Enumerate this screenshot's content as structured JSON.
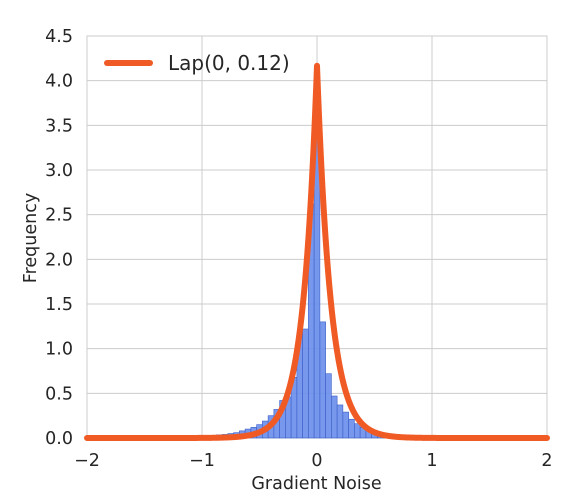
{
  "chart_data": {
    "type": "histogram",
    "title": "",
    "xlabel": "Gradient Noise",
    "ylabel": "Frequency",
    "xlim": [
      -2,
      2
    ],
    "ylim": [
      0,
      4.5
    ],
    "xticks": [
      "−2",
      "−1",
      "0",
      "1",
      "2"
    ],
    "yticks": [
      "0.0",
      "0.5",
      "1.0",
      "1.5",
      "2.0",
      "2.5",
      "3.0",
      "3.5",
      "4.0",
      "4.5"
    ],
    "grid": true,
    "legend_position": "top-left",
    "bar_color": "#6b8fea",
    "curve_color": "#f05a24",
    "bin_width": 0.05,
    "bins": [
      {
        "x": -1.0,
        "h": 0.02
      },
      {
        "x": -0.95,
        "h": 0.025
      },
      {
        "x": -0.9,
        "h": 0.03
      },
      {
        "x": -0.85,
        "h": 0.035
      },
      {
        "x": -0.8,
        "h": 0.04
      },
      {
        "x": -0.75,
        "h": 0.05
      },
      {
        "x": -0.7,
        "h": 0.06
      },
      {
        "x": -0.65,
        "h": 0.08
      },
      {
        "x": -0.6,
        "h": 0.1
      },
      {
        "x": -0.55,
        "h": 0.12
      },
      {
        "x": -0.5,
        "h": 0.15
      },
      {
        "x": -0.45,
        "h": 0.19
      },
      {
        "x": -0.4,
        "h": 0.25
      },
      {
        "x": -0.35,
        "h": 0.32
      },
      {
        "x": -0.3,
        "h": 0.42
      },
      {
        "x": -0.25,
        "h": 0.46
      },
      {
        "x": -0.2,
        "h": 0.68
      },
      {
        "x": -0.15,
        "h": 1.17
      },
      {
        "x": -0.1,
        "h": 1.22
      },
      {
        "x": -0.05,
        "h": 2.62
      },
      {
        "x": 0.0,
        "h": 3.82
      },
      {
        "x": 0.05,
        "h": 1.3
      },
      {
        "x": 0.1,
        "h": 0.72
      },
      {
        "x": 0.15,
        "h": 0.47
      },
      {
        "x": 0.2,
        "h": 0.37
      },
      {
        "x": 0.25,
        "h": 0.29
      },
      {
        "x": 0.3,
        "h": 0.21
      },
      {
        "x": 0.35,
        "h": 0.16
      },
      {
        "x": 0.4,
        "h": 0.12
      },
      {
        "x": 0.45,
        "h": 0.1
      },
      {
        "x": 0.5,
        "h": 0.08
      },
      {
        "x": 0.55,
        "h": 0.06
      },
      {
        "x": 0.6,
        "h": 0.05
      },
      {
        "x": 0.65,
        "h": 0.04
      },
      {
        "x": 0.7,
        "h": 0.035
      },
      {
        "x": 0.75,
        "h": 0.03
      },
      {
        "x": 0.8,
        "h": 0.025
      },
      {
        "x": 0.85,
        "h": 0.02
      },
      {
        "x": 0.9,
        "h": 0.015
      },
      {
        "x": 0.95,
        "h": 0.01
      }
    ],
    "series": [
      {
        "name": "Lap(0, 0.12)",
        "type": "laplace_pdf",
        "mu": 0,
        "b": 0.12
      }
    ]
  }
}
